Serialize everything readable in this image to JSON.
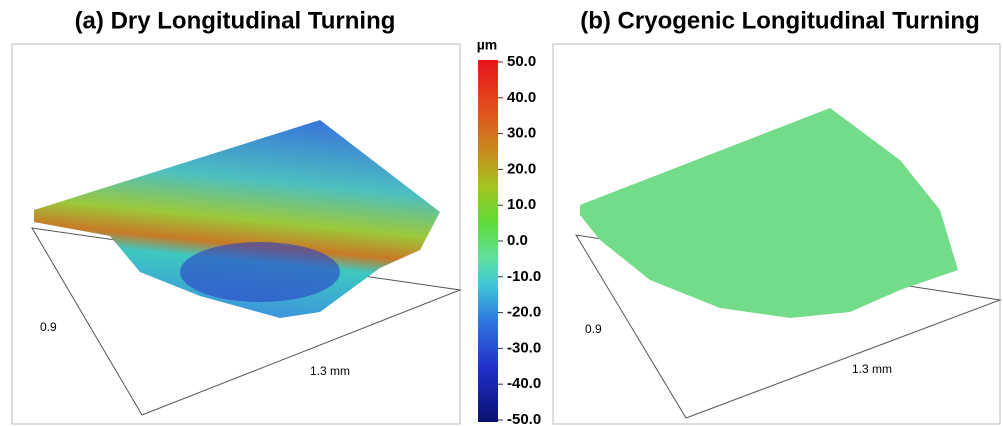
{
  "panels": [
    {
      "title": "(a) Dry Longitudinal Turning",
      "width_label": "0.9",
      "length_label": "1.3 mm"
    },
    {
      "title": "(b) Cryogenic Longitudinal Turning",
      "width_label": "0.9",
      "length_label": "1.3 mm"
    }
  ],
  "colorbar": {
    "unit": "µm",
    "ticks": [
      {
        "value": 50,
        "label": "50.0"
      },
      {
        "value": 40,
        "label": "40.0"
      },
      {
        "value": 30,
        "label": "30.0"
      },
      {
        "value": 20,
        "label": "20.0"
      },
      {
        "value": 10,
        "label": "10.0"
      },
      {
        "value": 0,
        "label": "0.0"
      },
      {
        "value": -10,
        "label": "-10.0"
      },
      {
        "value": -20,
        "label": "-20.0"
      },
      {
        "value": -30,
        "label": "-30.0"
      },
      {
        "value": -40,
        "label": "-40.0"
      },
      {
        "value": -50,
        "label": "-50.0"
      }
    ]
  }
}
